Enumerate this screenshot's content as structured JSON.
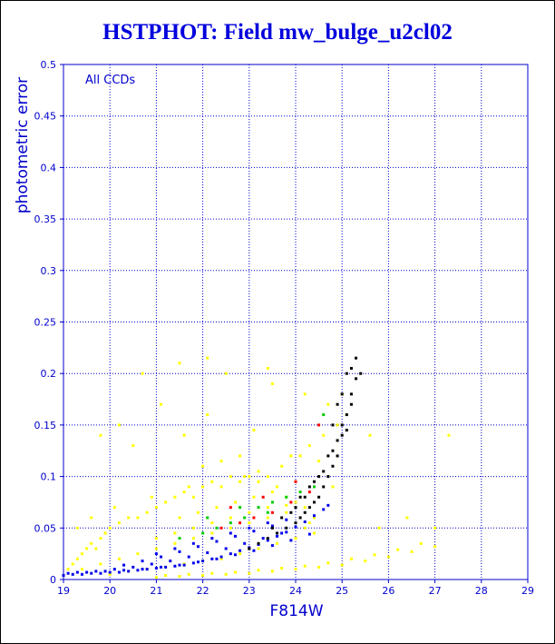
{
  "chart_data": {
    "type": "scatter",
    "title": "HSTPHOT: Field mw_bulge_u2cl02",
    "xlabel": "F814W",
    "ylabel": "photometric error",
    "annotation": "All CCDs",
    "xlim": [
      19,
      29
    ],
    "ylim": [
      0,
      0.5
    ],
    "x_ticks": [
      "19",
      "20",
      "21",
      "22",
      "23",
      "24",
      "25",
      "26",
      "27",
      "28",
      "29"
    ],
    "y_ticks": [
      "0",
      "0.05",
      "0.1",
      "0.15",
      "0.2",
      "0.25",
      "0.3",
      "0.35",
      "0.4",
      "0.45",
      "0.5"
    ],
    "grid": true,
    "series": [
      {
        "color": "#ffff00",
        "x": [
          19.1,
          19.2,
          19.3,
          19.4,
          19.5,
          19.6,
          19.7,
          19.8,
          19.9,
          20.0,
          20.2,
          20.4,
          20.6,
          20.8,
          21.0,
          21.2,
          21.4,
          21.6,
          21.8,
          22.0,
          22.2,
          22.4,
          22.6,
          22.8,
          23.0,
          23.2,
          23.4,
          23.6,
          23.8,
          24.0,
          24.2,
          24.4,
          19.4,
          19.8,
          20.2,
          20.6,
          21.0,
          21.4,
          21.8,
          22.2,
          22.6,
          23.0,
          23.4,
          23.8,
          24.2,
          20.0,
          20.4,
          20.8,
          21.2,
          21.6,
          22.0,
          22.4,
          22.8,
          23.2,
          23.6,
          24.0,
          24.4,
          21.0,
          21.4,
          21.8,
          22.2,
          22.6,
          23.0,
          23.4,
          23.8,
          21.5,
          21.9,
          22.3,
          22.7,
          23.1,
          23.5,
          22.0,
          22.4,
          22.8,
          23.2,
          23.9,
          24.3,
          24.6,
          24.9,
          25.1,
          19.3,
          19.6,
          20.1,
          20.9,
          21.7,
          22.9,
          23.7,
          24.5,
          20.5,
          21.6,
          19.8,
          20.2,
          21.1,
          22.1,
          23.1,
          24.1,
          25.0,
          21.5,
          22.5,
          23.5,
          24.2,
          24.7,
          21.0,
          21.5,
          22.0,
          22.5,
          23.0,
          23.5,
          24.0,
          24.5,
          25.0,
          25.5,
          26.0,
          26.5,
          27.0,
          21.2,
          21.7,
          22.2,
          22.7,
          23.2,
          23.7,
          24.2,
          24.7,
          25.2,
          25.7,
          26.2,
          26.7,
          23.0,
          24.0,
          24.3,
          25.6,
          26.4,
          27.0,
          27.3,
          24.8,
          20.7,
          22.1,
          23.4,
          25.8
        ],
        "y": [
          0.01,
          0.015,
          0.02,
          0.025,
          0.03,
          0.035,
          0.03,
          0.04,
          0.045,
          0.05,
          0.055,
          0.06,
          0.06,
          0.065,
          0.07,
          0.075,
          0.08,
          0.085,
          0.08,
          0.09,
          0.095,
          0.09,
          0.1,
          0.095,
          0.1,
          0.095,
          0.1,
          0.09,
          0.08,
          0.075,
          0.07,
          0.06,
          0.01,
          0.015,
          0.02,
          0.025,
          0.03,
          0.035,
          0.04,
          0.045,
          0.05,
          0.055,
          0.06,
          0.065,
          0.05,
          0.005,
          0.008,
          0.01,
          0.012,
          0.015,
          0.018,
          0.02,
          0.025,
          0.03,
          0.035,
          0.04,
          0.045,
          0.04,
          0.045,
          0.05,
          0.055,
          0.06,
          0.065,
          0.07,
          0.072,
          0.06,
          0.065,
          0.07,
          0.075,
          0.08,
          0.085,
          0.11,
          0.115,
          0.12,
          0.105,
          0.12,
          0.13,
          0.14,
          0.15,
          0.16,
          0.05,
          0.06,
          0.07,
          0.08,
          0.09,
          0.1,
          0.11,
          0.115,
          0.13,
          0.14,
          0.14,
          0.15,
          0.17,
          0.16,
          0.145,
          0.12,
          0.18,
          0.21,
          0.2,
          0.19,
          0.18,
          0.17,
          0.002,
          0.003,
          0.004,
          0.005,
          0.006,
          0.008,
          0.01,
          0.012,
          0.014,
          0.018,
          0.022,
          0.027,
          0.032,
          0.004,
          0.005,
          0.006,
          0.007,
          0.009,
          0.011,
          0.013,
          0.016,
          0.02,
          0.024,
          0.029,
          0.035,
          0.03,
          0.04,
          0.055,
          0.14,
          0.06,
          0.05,
          0.14,
          0.09,
          0.2,
          0.215,
          0.205,
          0.05
        ]
      },
      {
        "color": "#0000ee",
        "x": [
          19.0,
          19.2,
          19.4,
          19.6,
          19.8,
          20.0,
          20.2,
          20.4,
          20.6,
          20.8,
          21.0,
          21.2,
          21.4,
          21.6,
          21.8,
          22.0,
          22.2,
          22.4,
          22.6,
          22.8,
          23.0,
          23.2,
          23.4,
          23.6,
          23.8,
          24.0,
          24.2,
          24.4,
          24.6,
          24.7,
          19.3,
          19.7,
          20.1,
          20.5,
          20.9,
          21.3,
          21.7,
          22.1,
          22.5,
          22.9,
          23.3,
          23.7,
          20.3,
          20.7,
          21.1,
          21.5,
          21.9,
          22.3,
          22.7,
          23.1,
          23.5,
          21.0,
          21.4,
          21.8,
          22.2,
          22.6,
          23.0,
          23.4,
          23.8,
          19.1,
          19.5,
          19.9,
          20.3,
          20.7,
          21.1,
          21.5,
          21.9,
          22.3,
          22.7,
          23.1,
          23.5,
          23.9,
          24.3
        ],
        "y": [
          0.004,
          0.005,
          0.005,
          0.006,
          0.006,
          0.007,
          0.007,
          0.008,
          0.009,
          0.01,
          0.011,
          0.012,
          0.013,
          0.014,
          0.016,
          0.018,
          0.02,
          0.022,
          0.025,
          0.028,
          0.031,
          0.034,
          0.038,
          0.042,
          0.046,
          0.051,
          0.056,
          0.062,
          0.068,
          0.072,
          0.007,
          0.008,
          0.01,
          0.012,
          0.015,
          0.018,
          0.022,
          0.026,
          0.03,
          0.035,
          0.04,
          0.045,
          0.014,
          0.018,
          0.022,
          0.027,
          0.032,
          0.037,
          0.042,
          0.047,
          0.052,
          0.025,
          0.03,
          0.035,
          0.04,
          0.045,
          0.05,
          0.055,
          0.058,
          0.006,
          0.007,
          0.008,
          0.009,
          0.01,
          0.012,
          0.014,
          0.017,
          0.02,
          0.024,
          0.028,
          0.033,
          0.038,
          0.044
        ]
      },
      {
        "color": "#000000",
        "x": [
          23.0,
          23.2,
          23.4,
          23.6,
          23.8,
          24.0,
          24.1,
          24.2,
          24.3,
          24.4,
          24.5,
          24.6,
          24.7,
          24.8,
          24.9,
          25.0,
          25.1,
          25.2,
          25.3,
          24.0,
          24.2,
          24.4,
          24.6,
          24.8,
          25.0,
          25.2,
          23.5,
          23.7,
          23.9,
          24.1,
          24.3,
          24.5,
          24.7,
          24.9,
          25.1,
          25.0,
          25.1,
          25.2,
          24.9,
          24.8,
          25.3,
          25.4
        ],
        "y": [
          0.03,
          0.035,
          0.04,
          0.045,
          0.05,
          0.055,
          0.06,
          0.065,
          0.07,
          0.075,
          0.08,
          0.09,
          0.1,
          0.11,
          0.12,
          0.14,
          0.16,
          0.18,
          0.195,
          0.07,
          0.08,
          0.095,
          0.105,
          0.125,
          0.15,
          0.17,
          0.05,
          0.06,
          0.065,
          0.08,
          0.09,
          0.1,
          0.12,
          0.135,
          0.145,
          0.18,
          0.2,
          0.205,
          0.17,
          0.15,
          0.215,
          0.2
        ]
      },
      {
        "color": "#00cc00",
        "x": [
          21.5,
          22.0,
          22.3,
          22.6,
          22.9,
          23.2,
          23.5,
          23.8,
          24.1,
          24.4,
          22.1,
          22.8,
          23.4,
          24.0,
          24.6
        ],
        "y": [
          0.04,
          0.045,
          0.05,
          0.055,
          0.06,
          0.07,
          0.075,
          0.08,
          0.085,
          0.09,
          0.06,
          0.07,
          0.065,
          0.095,
          0.16
        ]
      },
      {
        "color": "#ff0000",
        "x": [
          22.4,
          22.8,
          23.1,
          23.5,
          23.9,
          24.3,
          22.6,
          23.3,
          24.0,
          24.5
        ],
        "y": [
          0.05,
          0.055,
          0.06,
          0.065,
          0.075,
          0.085,
          0.07,
          0.08,
          0.095,
          0.15
        ]
      }
    ]
  }
}
